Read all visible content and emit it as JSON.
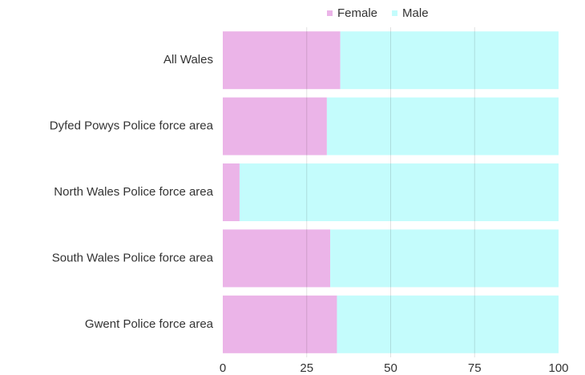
{
  "chart_data": {
    "type": "stacked-bar-horizontal",
    "categories": [
      "All Wales",
      "Dyfed Powys Police force area",
      "North Wales Police force area",
      "South Wales Police force area",
      "Gwent Police force area"
    ],
    "series": [
      {
        "name": "Female",
        "color": "#ebb4e8",
        "values": [
          35,
          31,
          5,
          32,
          34
        ]
      },
      {
        "name": "Male",
        "color": "#c4fcfc",
        "values": [
          65,
          69,
          95,
          68,
          66
        ]
      }
    ],
    "xlim": [
      0,
      100
    ],
    "xticks": [
      0,
      25,
      50,
      75,
      100
    ],
    "grid": true,
    "legend": "top"
  }
}
